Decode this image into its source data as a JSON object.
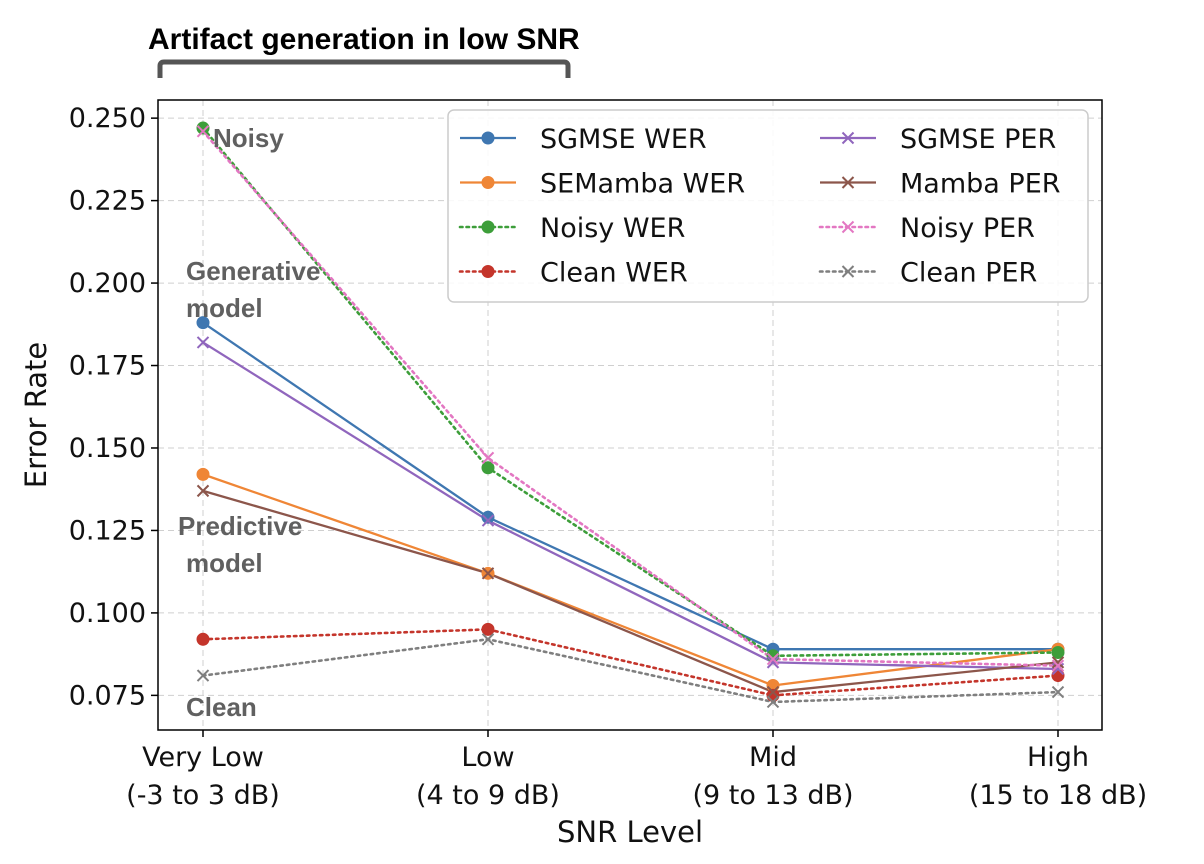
{
  "chart_data": {
    "type": "line",
    "title": "",
    "xlabel": "SNR Level",
    "ylabel": "Error Rate",
    "categories": [
      [
        "Very Low",
        "(-3 to 3 dB)"
      ],
      [
        "Low",
        "(4 to 9 dB)"
      ],
      [
        "Mid",
        "(9 to 13 dB)"
      ],
      [
        "High",
        "(15 to 18 dB)"
      ]
    ],
    "ylim": [
      0.0645,
      0.2555
    ],
    "yticks": [
      0.075,
      0.1,
      0.125,
      0.15,
      0.175,
      0.2,
      0.225,
      0.25
    ],
    "ytick_labels": [
      "0.075",
      "0.100",
      "0.125",
      "0.150",
      "0.175",
      "0.200",
      "0.225",
      "0.250"
    ],
    "grid": true,
    "legend_position": "top-right",
    "series": [
      {
        "name": "SGMSE WER",
        "values": [
          0.188,
          0.129,
          0.089,
          0.089
        ],
        "color": "#3f77b1",
        "style": "solid",
        "marker": "circle"
      },
      {
        "name": "SEMamba WER",
        "values": [
          0.142,
          0.112,
          0.078,
          0.089
        ],
        "color": "#ef8636",
        "style": "solid",
        "marker": "circle"
      },
      {
        "name": "Noisy WER",
        "values": [
          0.247,
          0.144,
          0.087,
          0.088
        ],
        "color": "#3d9e3a",
        "style": "dotted",
        "marker": "circle"
      },
      {
        "name": "Clean WER",
        "values": [
          0.092,
          0.095,
          0.075,
          0.081
        ],
        "color": "#c4352b",
        "style": "dotted",
        "marker": "circle"
      },
      {
        "name": "SGMSE PER",
        "values": [
          0.182,
          0.128,
          0.085,
          0.083
        ],
        "color": "#9066bd",
        "style": "solid",
        "marker": "x"
      },
      {
        "name": "Mamba PER",
        "values": [
          0.137,
          0.112,
          0.076,
          0.085
        ],
        "color": "#8c564b",
        "style": "solid",
        "marker": "x"
      },
      {
        "name": "Noisy PER",
        "values": [
          0.246,
          0.147,
          0.086,
          0.084
        ],
        "color": "#e377c2",
        "style": "dotted",
        "marker": "x"
      },
      {
        "name": "Clean PER",
        "values": [
          0.081,
          0.092,
          0.073,
          0.076
        ],
        "color": "#7f7f7f",
        "style": "dotted",
        "marker": "x"
      }
    ],
    "annotations": {
      "bracket_title": "Artifact generation in low SNR",
      "noisy": "Noisy",
      "generative": [
        "Generative",
        "model"
      ],
      "predictive": [
        "Predictive",
        "model"
      ],
      "clean": "Clean"
    }
  }
}
